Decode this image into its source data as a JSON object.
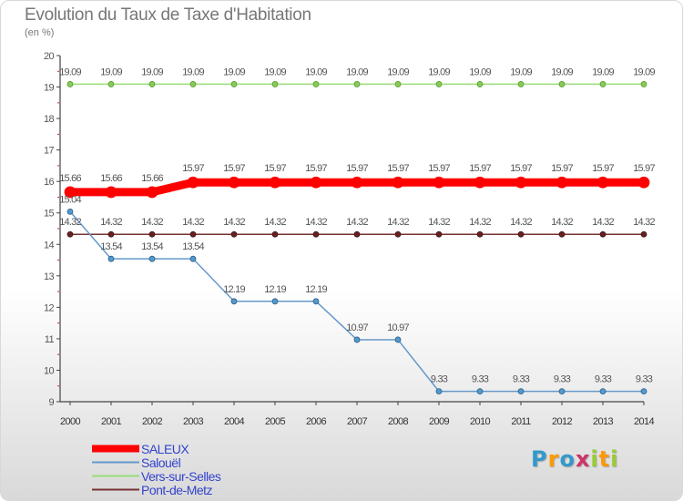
{
  "chart_data": {
    "type": "line",
    "title": "Evolution du Taux de Taxe d'Habitation",
    "unit_label": "(en %)",
    "x": [
      "2000",
      "2001",
      "2002",
      "2003",
      "2004",
      "2005",
      "2006",
      "2007",
      "2008",
      "2009",
      "2010",
      "2011",
      "2012",
      "2013",
      "2014"
    ],
    "ylim": [
      9,
      20
    ],
    "yticks": [
      "9",
      "10",
      "11",
      "12",
      "13",
      "14",
      "15",
      "16",
      "17",
      "18",
      "19",
      "20"
    ],
    "series": [
      {
        "name": "SALEUX",
        "color": "#ff0000",
        "values": [
          15.66,
          15.66,
          15.66,
          15.97,
          15.97,
          15.97,
          15.97,
          15.97,
          15.97,
          15.97,
          15.97,
          15.97,
          15.97,
          15.97,
          15.97
        ],
        "labels": [
          "15.66",
          "15.66",
          "15.66",
          "15.97",
          "15.97",
          "15.97",
          "15.97",
          "15.97",
          "15.97",
          "15.97",
          "15.97",
          "15.97",
          "15.97",
          "15.97",
          "15.97"
        ]
      },
      {
        "name": "Salouël",
        "color": "#6699cc",
        "values": [
          15.04,
          13.54,
          13.54,
          13.54,
          12.19,
          12.19,
          12.19,
          10.97,
          10.97,
          9.33,
          9.33,
          9.33,
          9.33,
          9.33,
          9.33
        ],
        "labels": [
          "15.04",
          "13.54",
          "13.54",
          "13.54",
          "12.19",
          "12.19",
          "12.19",
          "10.97",
          "10.97",
          "9.33",
          "9.33",
          "9.33",
          "9.33",
          "9.33",
          "9.33"
        ]
      },
      {
        "name": "Vers-sur-Selles",
        "color": "#99dd77",
        "values": [
          19.09,
          19.09,
          19.09,
          19.09,
          19.09,
          19.09,
          19.09,
          19.09,
          19.09,
          19.09,
          19.09,
          19.09,
          19.09,
          19.09,
          19.09
        ],
        "labels": [
          "19.09",
          "19.09",
          "19.09",
          "19.09",
          "19.09",
          "19.09",
          "19.09",
          "19.09",
          "19.09",
          "19.09",
          "19.09",
          "19.09",
          "19.09",
          "19.09",
          "19.09"
        ]
      },
      {
        "name": "Pont-de-Metz",
        "color": "#773333",
        "values": [
          14.32,
          14.32,
          14.32,
          14.32,
          14.32,
          14.32,
          14.32,
          14.32,
          14.32,
          14.32,
          14.32,
          14.32,
          14.32,
          14.32,
          14.32
        ],
        "labels": [
          "14.32",
          "14.32",
          "14.32",
          "14.32",
          "14.32",
          "14.32",
          "14.32",
          "14.32",
          "14.32",
          "14.32",
          "14.32",
          "14.32",
          "14.32",
          "14.32",
          "14.32"
        ]
      }
    ],
    "grid": false,
    "legend_position": "bottom-left"
  },
  "logo": {
    "letters": [
      "P",
      "r",
      "o",
      "x",
      "i",
      "t",
      "i"
    ],
    "colors": [
      "#3399cc",
      "#ff9900",
      "#3399cc",
      "#cc3366",
      "#99cc33",
      "#ff9900",
      "#99cc33"
    ]
  }
}
